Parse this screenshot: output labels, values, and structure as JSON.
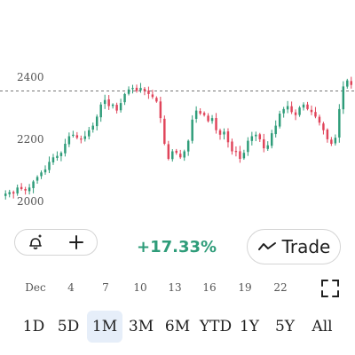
{
  "chart_data": {
    "type": "candlestick",
    "y_ticks": [
      "2400",
      "2200",
      "2000"
    ],
    "ylim": [
      1950,
      2460
    ],
    "reference_price": 2375,
    "x_ticks": [
      "Dec",
      "4",
      "7",
      "10",
      "13",
      "16",
      "19",
      "22"
    ],
    "closes": [
      2035,
      2040,
      2035,
      2055,
      2050,
      2045,
      2055,
      2075,
      2090,
      2105,
      2115,
      2140,
      2155,
      2160,
      2170,
      2200,
      2225,
      2230,
      2220,
      2215,
      2225,
      2245,
      2260,
      2290,
      2330,
      2345,
      2325,
      2330,
      2310,
      2335,
      2365,
      2380,
      2385,
      2375,
      2385,
      2375,
      2365,
      2355,
      2340,
      2285,
      2200,
      2150,
      2175,
      2170,
      2155,
      2175,
      2210,
      2280,
      2310,
      2300,
      2295,
      2275,
      2285,
      2245,
      2230,
      2240,
      2205,
      2175,
      2175,
      2150,
      2170,
      2210,
      2225,
      2230,
      2215,
      2185,
      2195,
      2235,
      2260,
      2300,
      2315,
      2325,
      2305,
      2295,
      2320,
      2330,
      2315,
      2305,
      2290,
      2270,
      2245,
      2215,
      2200,
      2220,
      2315,
      2390,
      2410,
      2395
    ],
    "up_color": "#2e9c79",
    "down_color": "#e0445a",
    "grid": false
  },
  "toolbar": {
    "alert_icon": "bell-plus-icon",
    "add_icon": "plus-icon",
    "change": "+17.33%",
    "trade_label": "Trade",
    "trade_icon": "trend-line-icon",
    "expand_icon": "expand-corners-icon"
  },
  "ranges": [
    "1D",
    "5D",
    "1M",
    "3M",
    "6M",
    "YTD",
    "1Y",
    "5Y",
    "All"
  ],
  "active_range": "1M",
  "colors": {
    "accent_green": "#2e9c79",
    "accent_red": "#e0445a",
    "active_bg": "#e6eef9"
  }
}
